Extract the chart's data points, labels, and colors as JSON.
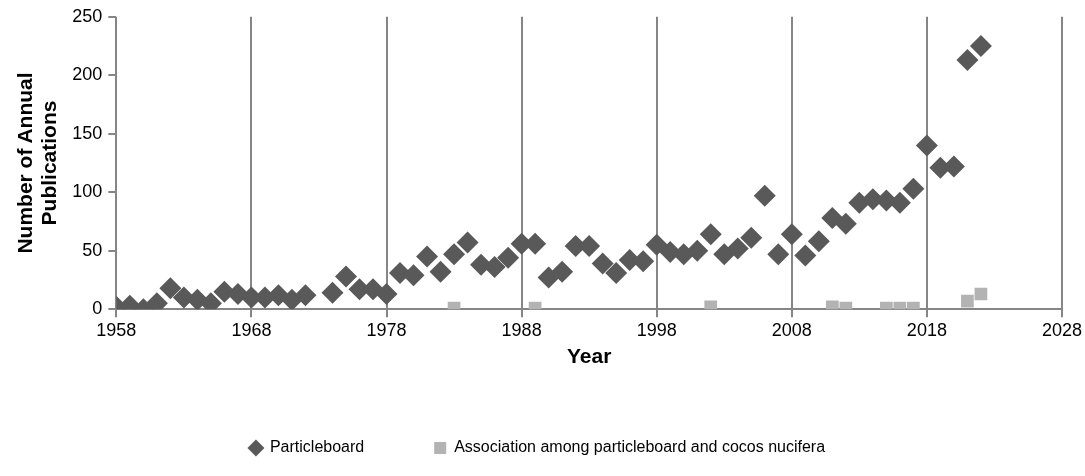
{
  "chart_data": {
    "type": "scatter",
    "xlabel": "Year",
    "ylabel": "Number of Annual Publications",
    "xlim": [
      1958,
      2028
    ],
    "xticks": [
      1958,
      1968,
      1978,
      1988,
      1998,
      2008,
      2018,
      2028
    ],
    "ylim": [
      0,
      250
    ],
    "yticks": [
      0,
      50,
      100,
      150,
      200,
      250
    ],
    "grid": "x",
    "legend": "bottom",
    "series": [
      {
        "name": "Particleboard",
        "color": "#595959",
        "marker": "diamond",
        "x": [
          1958,
          1959,
          1960,
          1961,
          1962,
          1963,
          1964,
          1965,
          1966,
          1967,
          1968,
          1969,
          1970,
          1971,
          1972,
          1974,
          1975,
          1976,
          1977,
          1978,
          1979,
          1980,
          1981,
          1982,
          1983,
          1984,
          1985,
          1986,
          1987,
          1988,
          1989,
          1990,
          1991,
          1992,
          1993,
          1994,
          1995,
          1996,
          1997,
          1998,
          1999,
          2000,
          2001,
          2002,
          2003,
          2004,
          2005,
          2006,
          2007,
          2008,
          2009,
          2010,
          2011,
          2012,
          2013,
          2014,
          2015,
          2016,
          2017,
          2018,
          2019,
          2020,
          2021,
          2022
        ],
        "values": [
          2,
          3,
          0,
          5,
          18,
          10,
          8,
          5,
          15,
          13,
          10,
          10,
          12,
          8,
          12,
          14,
          28,
          17,
          17,
          13,
          31,
          29,
          45,
          32,
          47,
          57,
          38,
          36,
          44,
          56,
          56,
          27,
          32,
          54,
          54,
          39,
          31,
          42,
          41,
          55,
          49,
          47,
          50,
          64,
          47,
          52,
          61,
          97,
          47,
          64,
          46,
          58,
          78,
          73,
          91,
          94,
          93,
          91,
          103,
          140,
          121,
          122,
          213,
          225
        ]
      },
      {
        "name": "Association among particleboard and cocos nucifera",
        "color": "#b3b3b3",
        "marker": "square",
        "x": [
          1983,
          1989,
          2002,
          2011,
          2012,
          2015,
          2016,
          2017,
          2021,
          2022
        ],
        "values": [
          1,
          1,
          2,
          2,
          1,
          1,
          1,
          1,
          7,
          13
        ]
      }
    ]
  }
}
